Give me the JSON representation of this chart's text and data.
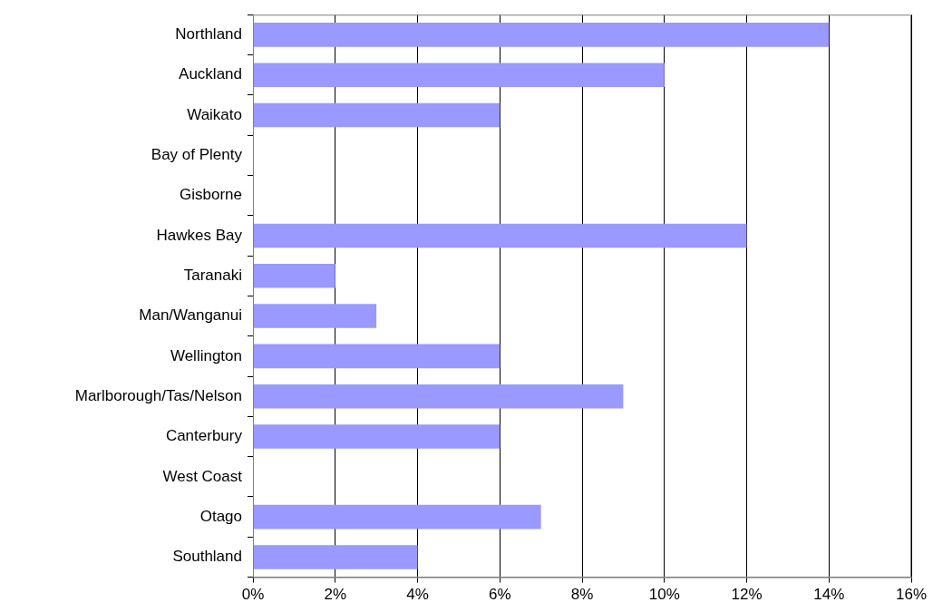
{
  "chart_data": {
    "type": "bar",
    "orientation": "horizontal",
    "categories": [
      "Northland",
      "Auckland",
      "Waikato",
      "Bay of Plenty",
      "Gisborne",
      "Hawkes Bay",
      "Taranaki",
      "Man/Wanganui",
      "Wellington",
      "Marlborough/Tas/Nelson",
      "Canterbury",
      "West Coast",
      "Otago",
      "Southland"
    ],
    "values": [
      14,
      10,
      6,
      0,
      0,
      12,
      2,
      3,
      6,
      9,
      6,
      0,
      7,
      4
    ],
    "color": "#9999ff",
    "xlim": [
      0,
      16
    ],
    "xticks": [
      {
        "value": 0,
        "label": "0%"
      },
      {
        "value": 2,
        "label": "2%"
      },
      {
        "value": 4,
        "label": "4%"
      },
      {
        "value": 6,
        "label": "6%"
      },
      {
        "value": 8,
        "label": "8%"
      },
      {
        "value": 10,
        "label": "10%"
      },
      {
        "value": 12,
        "label": "12%"
      },
      {
        "value": 14,
        "label": "14%"
      },
      {
        "value": 16,
        "label": "16%"
      }
    ],
    "grid": "x",
    "legend": false
  }
}
